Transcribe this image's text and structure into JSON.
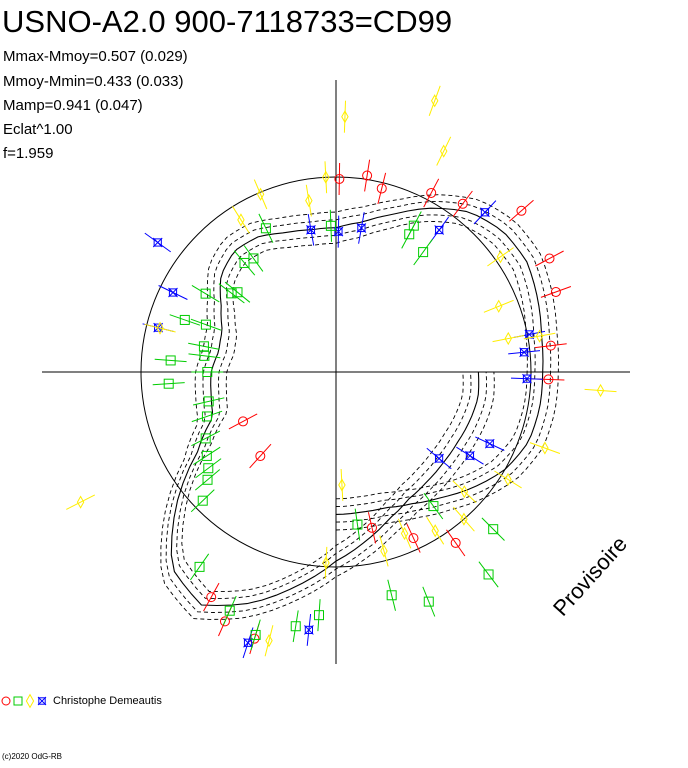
{
  "header": {
    "title": "USNO-A2.0 900-7118733=CD99",
    "stats": [
      "Mmax-Mmoy=0.507 (0.029)",
      "Mmoy-Mmin=0.433 (0.033)",
      "Mamp=0.941 (0.047)",
      "Eclat^1.00",
      "f=1.959"
    ]
  },
  "watermark": "Provisoire",
  "legend": {
    "observer": "Christophe Demeautis",
    "symbols": [
      {
        "shape": "circle",
        "color": "#ff0000"
      },
      {
        "shape": "square",
        "color": "#00cc00"
      },
      {
        "shape": "diamond",
        "color": "#ffee00"
      },
      {
        "shape": "star",
        "color": "#0000ff"
      }
    ]
  },
  "footer": {
    "copyright": "(c)2020 OdG-RB"
  },
  "colors": {
    "red": "#ff0000",
    "green": "#00cc00",
    "yellow": "#ffee00",
    "blue": "#0000ff",
    "axis": "#000000"
  },
  "chart_data": {
    "type": "scatter",
    "description_unit": "polar light curve: angle = phase, radius = relative brightness",
    "reference_circle_radius": 1.0,
    "mean_curve": [
      [
        0,
        0.73
      ],
      [
        10,
        0.73
      ],
      [
        20,
        0.74
      ],
      [
        30,
        0.78
      ],
      [
        40,
        0.84
      ],
      [
        50,
        0.92
      ],
      [
        60,
        1.0
      ],
      [
        70,
        1.05
      ],
      [
        80,
        1.06
      ],
      [
        90,
        1.06
      ],
      [
        100,
        1.07
      ],
      [
        110,
        1.1
      ],
      [
        120,
        1.13
      ],
      [
        130,
        1.12
      ],
      [
        140,
        1.07
      ],
      [
        150,
        0.97
      ],
      [
        160,
        0.86
      ],
      [
        170,
        0.78
      ],
      [
        180,
        0.74
      ],
      [
        190,
        0.74
      ],
      [
        200,
        0.76
      ],
      [
        210,
        0.8
      ],
      [
        220,
        0.81
      ],
      [
        230,
        0.77
      ],
      [
        240,
        0.68
      ],
      [
        250,
        0.62
      ],
      [
        260,
        0.61
      ],
      [
        270,
        0.64
      ],
      [
        280,
        0.65
      ],
      [
        290,
        0.67
      ],
      [
        300,
        0.82
      ],
      [
        310,
        1.07
      ],
      [
        320,
        1.31
      ],
      [
        330,
        1.38
      ],
      [
        340,
        1.26
      ],
      [
        350,
        1.11
      ],
      [
        360,
        0.97
      ],
      [
        370,
        0.88
      ],
      [
        380,
        0.8
      ],
      [
        390,
        0.75
      ],
      [
        400,
        0.73
      ],
      [
        410,
        0.72
      ],
      [
        420,
        0.72
      ],
      [
        430,
        0.73
      ],
      [
        440,
        0.74
      ],
      [
        450,
        0.73
      ]
    ],
    "envelope_offsets": [
      -0.08,
      -0.04,
      0.04,
      0.08
    ],
    "points": [
      {
        "phase": 13,
        "r": 0.82,
        "series": "red"
      },
      {
        "phase": 25,
        "r": 0.94,
        "series": "red"
      },
      {
        "phase": 35,
        "r": 1.07,
        "series": "red"
      },
      {
        "phase": 88,
        "r": 1.09,
        "series": "red"
      },
      {
        "phase": 97,
        "r": 1.11,
        "series": "red"
      },
      {
        "phase": 110,
        "r": 1.2,
        "series": "red"
      },
      {
        "phase": 118,
        "r": 1.24,
        "series": "red"
      },
      {
        "phase": 131,
        "r": 1.26,
        "series": "red"
      },
      {
        "phase": 143,
        "r": 1.08,
        "series": "red"
      },
      {
        "phase": 152,
        "r": 1.04,
        "series": "red"
      },
      {
        "phase": 166,
        "r": 0.97,
        "series": "red"
      },
      {
        "phase": 171,
        "r": 1.02,
        "series": "red"
      },
      {
        "phase": 179,
        "r": 0.99,
        "series": "red"
      },
      {
        "phase": 331,
        "r": 1.32,
        "series": "red"
      },
      {
        "phase": 336,
        "r": 1.4,
        "series": "red"
      },
      {
        "phase": 343,
        "r": 1.43,
        "series": "red"
      },
      {
        "phase": 298,
        "r": 0.54,
        "series": "red"
      },
      {
        "phase": 318,
        "r": 0.58,
        "series": "red"
      },
      {
        "phase": 50,
        "r": 0.69,
        "series": "blue"
      },
      {
        "phase": 58,
        "r": 0.81,
        "series": "blue"
      },
      {
        "phase": 65,
        "r": 0.87,
        "series": "blue"
      },
      {
        "phase": 88,
        "r": 0.98,
        "series": "blue"
      },
      {
        "phase": 96,
        "r": 0.97,
        "series": "blue"
      },
      {
        "phase": 101,
        "r": 1.01,
        "series": "blue"
      },
      {
        "phase": 137,
        "r": 1.12,
        "series": "blue"
      },
      {
        "phase": 144,
        "r": 0.9,
        "series": "blue"
      },
      {
        "phase": 170,
        "r": 0.75,
        "series": "blue"
      },
      {
        "phase": 179,
        "r": 0.72,
        "series": "blue"
      },
      {
        "phase": 190,
        "r": 0.74,
        "series": "blue"
      },
      {
        "phase": 234,
        "r": 1.13,
        "series": "blue"
      },
      {
        "phase": 244,
        "r": 0.93,
        "series": "blue"
      },
      {
        "phase": 256,
        "r": 0.94,
        "series": "blue"
      },
      {
        "phase": 342,
        "r": 1.46,
        "series": "blue"
      },
      {
        "phase": 354,
        "r": 1.33,
        "series": "blue"
      },
      {
        "phase": 3,
        "r": 0.58,
        "series": "yellow"
      },
      {
        "phase": 15,
        "r": 0.95,
        "series": "yellow"
      },
      {
        "phase": 23,
        "r": 0.9,
        "series": "yellow"
      },
      {
        "phase": 32,
        "r": 0.96,
        "series": "yellow"
      },
      {
        "phase": 41,
        "r": 1.0,
        "series": "yellow"
      },
      {
        "phase": 47,
        "r": 0.9,
        "series": "yellow"
      },
      {
        "phase": 58,
        "r": 1.04,
        "series": "yellow"
      },
      {
        "phase": 70,
        "r": 1.14,
        "series": "yellow"
      },
      {
        "phase": 86,
        "r": 1.36,
        "series": "yellow"
      },
      {
        "phase": 100,
        "r": 1.06,
        "series": "yellow"
      },
      {
        "phase": 101,
        "r": 0.9,
        "series": "yellow"
      },
      {
        "phase": 112,
        "r": 0.9,
        "series": "yellow"
      },
      {
        "phase": 125,
        "r": 1.03,
        "series": "yellow"
      },
      {
        "phase": 154,
        "r": 1.26,
        "series": "yellow"
      },
      {
        "phase": 160,
        "r": 1.48,
        "series": "yellow"
      },
      {
        "phase": 178,
        "r": 1.31,
        "series": "yellow"
      },
      {
        "phase": 183,
        "r": 1.0,
        "series": "yellow"
      },
      {
        "phase": 189,
        "r": 0.89,
        "series": "yellow"
      },
      {
        "phase": 203,
        "r": 0.99,
        "series": "yellow"
      },
      {
        "phase": 212,
        "r": 0.92,
        "series": "yellow"
      },
      {
        "phase": 256,
        "r": 0.93,
        "series": "yellow"
      },
      {
        "phase": 297,
        "r": 1.47,
        "series": "yellow"
      },
      {
        "phase": 346,
        "r": 1.42,
        "series": "yellow"
      },
      {
        "phase": 357,
        "r": 0.98,
        "series": "yellow"
      },
      {
        "phase": 8,
        "r": 0.79,
        "series": "green"
      },
      {
        "phase": 36,
        "r": 0.85,
        "series": "green"
      },
      {
        "phase": 144,
        "r": 0.76,
        "series": "green"
      },
      {
        "phase": 152,
        "r": 0.8,
        "series": "green"
      },
      {
        "phase": 152,
        "r": 0.85,
        "series": "green"
      },
      {
        "phase": 182,
        "r": 0.75,
        "series": "green"
      },
      {
        "phase": 206,
        "r": 0.82,
        "series": "green"
      },
      {
        "phase": 216,
        "r": 0.72,
        "series": "green"
      },
      {
        "phase": 220,
        "r": 0.73,
        "series": "green"
      },
      {
        "phase": 231,
        "r": 0.65,
        "series": "green"
      },
      {
        "phase": 233,
        "r": 0.67,
        "series": "green"
      },
      {
        "phase": 239,
        "r": 0.78,
        "series": "green"
      },
      {
        "phase": 250,
        "r": 0.71,
        "series": "green"
      },
      {
        "phase": 251,
        "r": 0.82,
        "series": "green"
      },
      {
        "phase": 259,
        "r": 0.69,
        "series": "green"
      },
      {
        "phase": 263,
        "r": 0.68,
        "series": "green"
      },
      {
        "phase": 266,
        "r": 0.85,
        "series": "green"
      },
      {
        "phase": 270,
        "r": 0.66,
        "series": "green"
      },
      {
        "phase": 274,
        "r": 0.86,
        "series": "green"
      },
      {
        "phase": 283,
        "r": 0.67,
        "series": "green"
      },
      {
        "phase": 289,
        "r": 0.7,
        "series": "green"
      },
      {
        "phase": 297,
        "r": 0.75,
        "series": "green"
      },
      {
        "phase": 303,
        "r": 0.79,
        "series": "green"
      },
      {
        "phase": 307,
        "r": 0.82,
        "series": "green"
      },
      {
        "phase": 310,
        "r": 0.86,
        "series": "green"
      },
      {
        "phase": 314,
        "r": 0.95,
        "series": "green"
      },
      {
        "phase": 325,
        "r": 1.22,
        "series": "green"
      },
      {
        "phase": 336,
        "r": 1.34,
        "series": "green"
      },
      {
        "phase": 343,
        "r": 1.41,
        "series": "green"
      },
      {
        "phase": 351,
        "r": 1.32,
        "series": "green"
      },
      {
        "phase": 356,
        "r": 1.25,
        "series": "green"
      },
      {
        "phase": 14,
        "r": 1.18,
        "series": "green"
      },
      {
        "phase": 45,
        "r": 1.14,
        "series": "green"
      },
      {
        "phase": 37,
        "r": 1.3,
        "series": "green"
      },
      {
        "phase": 22,
        "r": 1.27,
        "series": "green"
      }
    ]
  }
}
